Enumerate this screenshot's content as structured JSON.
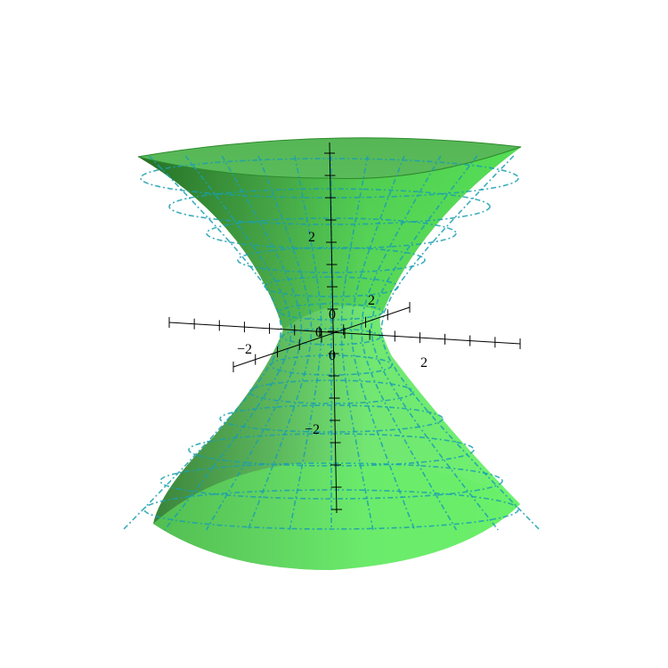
{
  "figure": {
    "surface": "hyperboloid of one sheet",
    "surface_color": "#39e83a",
    "mesh_color": "#1a9fb0",
    "axes_color": "#000000",
    "background": "#ffffff"
  },
  "axes": {
    "x_tick_labels": [
      "−2",
      "2"
    ],
    "y_tick_labels": [
      "0",
      "2"
    ],
    "z_tick_labels": [
      "2",
      "0",
      "−2"
    ],
    "origin_label": "0"
  }
}
